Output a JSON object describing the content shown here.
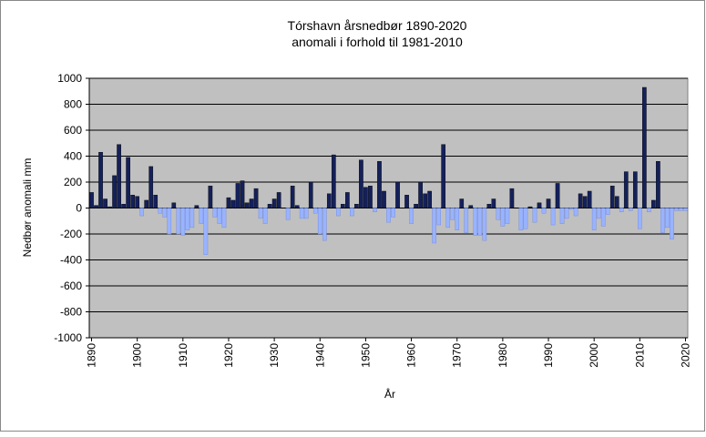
{
  "chart_data": {
    "type": "bar",
    "title": "Tórshavn årsnedbør 1890-2020",
    "subtitle": "anomali i forhold til 1981-2010",
    "x_label": "År",
    "y_label": "Nedbør anomali mm",
    "color": "#14215a",
    "negative_color": "#99b3ff",
    "x": [
      1890,
      1891,
      1892,
      1893,
      1894,
      1895,
      1896,
      1897,
      1898,
      1899,
      1900,
      1901,
      1902,
      1903,
      1904,
      1905,
      1906,
      1907,
      1908,
      1909,
      1910,
      1911,
      1912,
      1913,
      1914,
      1915,
      1916,
      1917,
      1918,
      1919,
      1920,
      1921,
      1922,
      1923,
      1924,
      1925,
      1926,
      1927,
      1928,
      1929,
      1930,
      1931,
      1932,
      1933,
      1934,
      1935,
      1936,
      1937,
      1938,
      1939,
      1940,
      1941,
      1942,
      1943,
      1944,
      1945,
      1946,
      1947,
      1948,
      1949,
      1950,
      1951,
      1952,
      1953,
      1954,
      1955,
      1956,
      1957,
      1958,
      1959,
      1960,
      1961,
      1962,
      1963,
      1964,
      1965,
      1966,
      1967,
      1968,
      1969,
      1970,
      1971,
      1972,
      1973,
      1974,
      1975,
      1976,
      1977,
      1978,
      1979,
      1980,
      1981,
      1982,
      1983,
      1984,
      1985,
      1986,
      1987,
      1988,
      1989,
      1990,
      1991,
      1992,
      1993,
      1994,
      1995,
      1996,
      1997,
      1998,
      1999,
      2000,
      2001,
      2002,
      2003,
      2004,
      2005,
      2006,
      2007,
      2008,
      2009,
      2010,
      2011,
      2012,
      2013,
      2014,
      2015,
      2016,
      2017,
      2018,
      2019,
      2020
    ],
    "values": [
      120,
      20,
      430,
      70,
      10,
      250,
      490,
      30,
      390,
      100,
      90,
      -60,
      60,
      320,
      100,
      -40,
      -70,
      -200,
      40,
      -200,
      -210,
      -170,
      -150,
      20,
      -120,
      -360,
      170,
      -70,
      -120,
      -150,
      80,
      60,
      190,
      210,
      40,
      70,
      150,
      -80,
      -120,
      30,
      70,
      120,
      0,
      -90,
      170,
      20,
      -80,
      -80,
      200,
      -40,
      -200,
      -250,
      110,
      410,
      -60,
      30,
      120,
      -60,
      30,
      370,
      160,
      170,
      -30,
      360,
      130,
      -110,
      -70,
      200,
      0,
      100,
      -120,
      30,
      200,
      110,
      130,
      -270,
      -130,
      490,
      -150,
      -90,
      -170,
      70,
      -190,
      20,
      -210,
      -210,
      -250,
      30,
      70,
      -90,
      -140,
      -120,
      150,
      0,
      -170,
      -160,
      10,
      -110,
      40,
      -40,
      70,
      -130,
      190,
      -120,
      -80,
      -10,
      -60,
      110,
      90,
      130,
      -170,
      -80,
      -140,
      -50,
      170,
      90,
      -30,
      280,
      -20,
      280,
      -160,
      930,
      -30,
      60,
      360,
      -190,
      -150,
      -240,
      -20,
      -20,
      -20
    ],
    "xlim": [
      1889.5,
      2020.5
    ],
    "xticks": [
      1890,
      1900,
      1910,
      1920,
      1930,
      1940,
      1950,
      1960,
      1970,
      1980,
      1990,
      2000,
      2010,
      2020
    ],
    "ylim": [
      -1000,
      1000
    ],
    "yticks": [
      -1000,
      -800,
      -600,
      -400,
      -200,
      0,
      200,
      400,
      600,
      800,
      1000
    ],
    "grid": true
  }
}
